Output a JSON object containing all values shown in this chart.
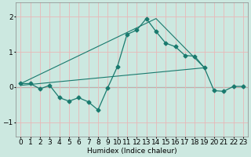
{
  "xlabel": "Humidex (Indice chaleur)",
  "ylabel": "",
  "xlim": [
    -0.5,
    23.5
  ],
  "ylim": [
    -1.4,
    2.4
  ],
  "yticks": [
    -1,
    0,
    1,
    2
  ],
  "xtick_labels": [
    "0",
    "1",
    "2",
    "3",
    "4",
    "5",
    "6",
    "7",
    "8",
    "9",
    "10",
    "11",
    "12",
    "13",
    "14",
    "15",
    "16",
    "17",
    "18",
    "19",
    "20",
    "21",
    "22",
    "23"
  ],
  "bg_color": "#cce8e0",
  "grid_color": "#e8b8b8",
  "line_color": "#1a7a6e",
  "line1_x": [
    0,
    1,
    2,
    3,
    4,
    5,
    6,
    7,
    8,
    9,
    10,
    11,
    12,
    13,
    14,
    15,
    16,
    17,
    18,
    19,
    20,
    21,
    22,
    23
  ],
  "line1_y": [
    0.1,
    0.1,
    -0.05,
    0.05,
    -0.3,
    -0.4,
    -0.3,
    -0.42,
    -0.65,
    -0.02,
    0.58,
    1.5,
    1.62,
    1.95,
    1.58,
    1.25,
    1.15,
    0.9,
    0.88,
    0.55,
    -0.1,
    -0.12,
    0.02,
    0.02
  ],
  "line2_x": [
    0,
    14,
    19
  ],
  "line2_y": [
    0.1,
    1.95,
    0.55
  ],
  "line3_x": [
    0,
    19
  ],
  "line3_y": [
    0.05,
    0.55
  ],
  "figsize": [
    3.2,
    2.0
  ],
  "dpi": 100
}
